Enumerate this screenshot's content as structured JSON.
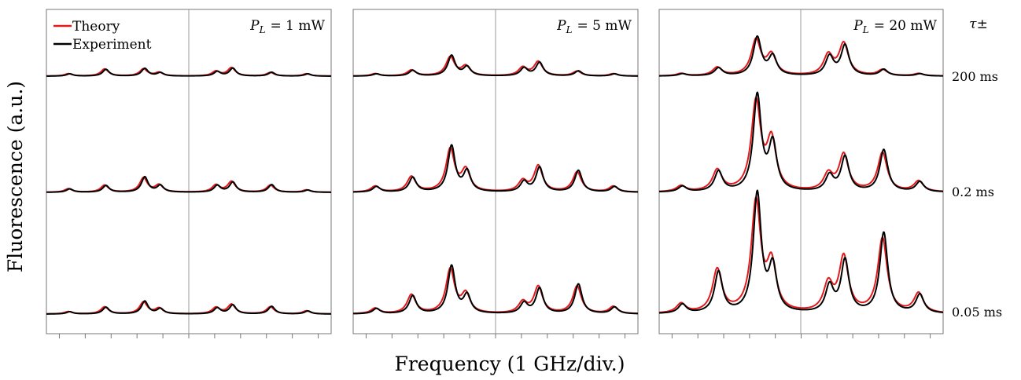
{
  "figure": {
    "ylabel": "Fluorescence (a.u.)",
    "xlabel": "Frequency (1 GHz/div.)",
    "tau_header": "τ±",
    "legend": [
      {
        "label": "Theory",
        "color": "#e31a1c"
      },
      {
        "label": "Experiment",
        "color": "#000000"
      }
    ]
  },
  "chart_data": {
    "type": "line",
    "x_unit": "GHz",
    "xlim": [
      -5.5,
      5.5
    ],
    "x_ticks_per_div": 1,
    "rows": [
      {
        "tau_label": "200 ms"
      },
      {
        "tau_label": "0.2 ms"
      },
      {
        "tau_label": "0.05 ms"
      }
    ],
    "panels": [
      {
        "label_var": "P",
        "label_sub": "L",
        "label_value": "= 1 mW"
      },
      {
        "label_var": "P",
        "label_sub": "L",
        "label_value": "= 5 mW"
      },
      {
        "label_var": "P",
        "label_sub": "L",
        "label_value": "= 20 mW"
      }
    ],
    "peak_positions_ghz": [
      -4.6,
      -3.2,
      -1.7,
      -1.1,
      1.1,
      1.7,
      3.2,
      4.6
    ],
    "peak_heights": [
      [
        [
          0.02,
          0.06,
          0.06,
          0.03,
          0.04,
          0.07,
          0.03,
          0.02
        ],
        [
          0.03,
          0.06,
          0.12,
          0.06,
          0.06,
          0.09,
          0.06,
          0.02
        ],
        [
          0.03,
          0.09,
          0.15,
          0.07,
          0.08,
          0.12,
          0.09,
          0.04
        ]
      ],
      [
        [
          0.02,
          0.05,
          0.16,
          0.08,
          0.07,
          0.12,
          0.04,
          0.02
        ],
        [
          0.05,
          0.13,
          0.36,
          0.18,
          0.09,
          0.22,
          0.17,
          0.05
        ],
        [
          0.07,
          0.24,
          0.56,
          0.24,
          0.14,
          0.34,
          0.35,
          0.09
        ]
      ],
      [
        [
          0.02,
          0.07,
          0.3,
          0.17,
          0.17,
          0.27,
          0.05,
          0.02
        ],
        [
          0.05,
          0.18,
          0.75,
          0.42,
          0.14,
          0.31,
          0.33,
          0.09
        ],
        [
          0.12,
          0.55,
          1.4,
          0.6,
          0.35,
          0.7,
          0.95,
          0.25
        ]
      ]
    ],
    "linewidth_ghz": [
      0.18,
      0.2,
      0.22
    ],
    "experiment_linewidth_scale": 0.85
  }
}
